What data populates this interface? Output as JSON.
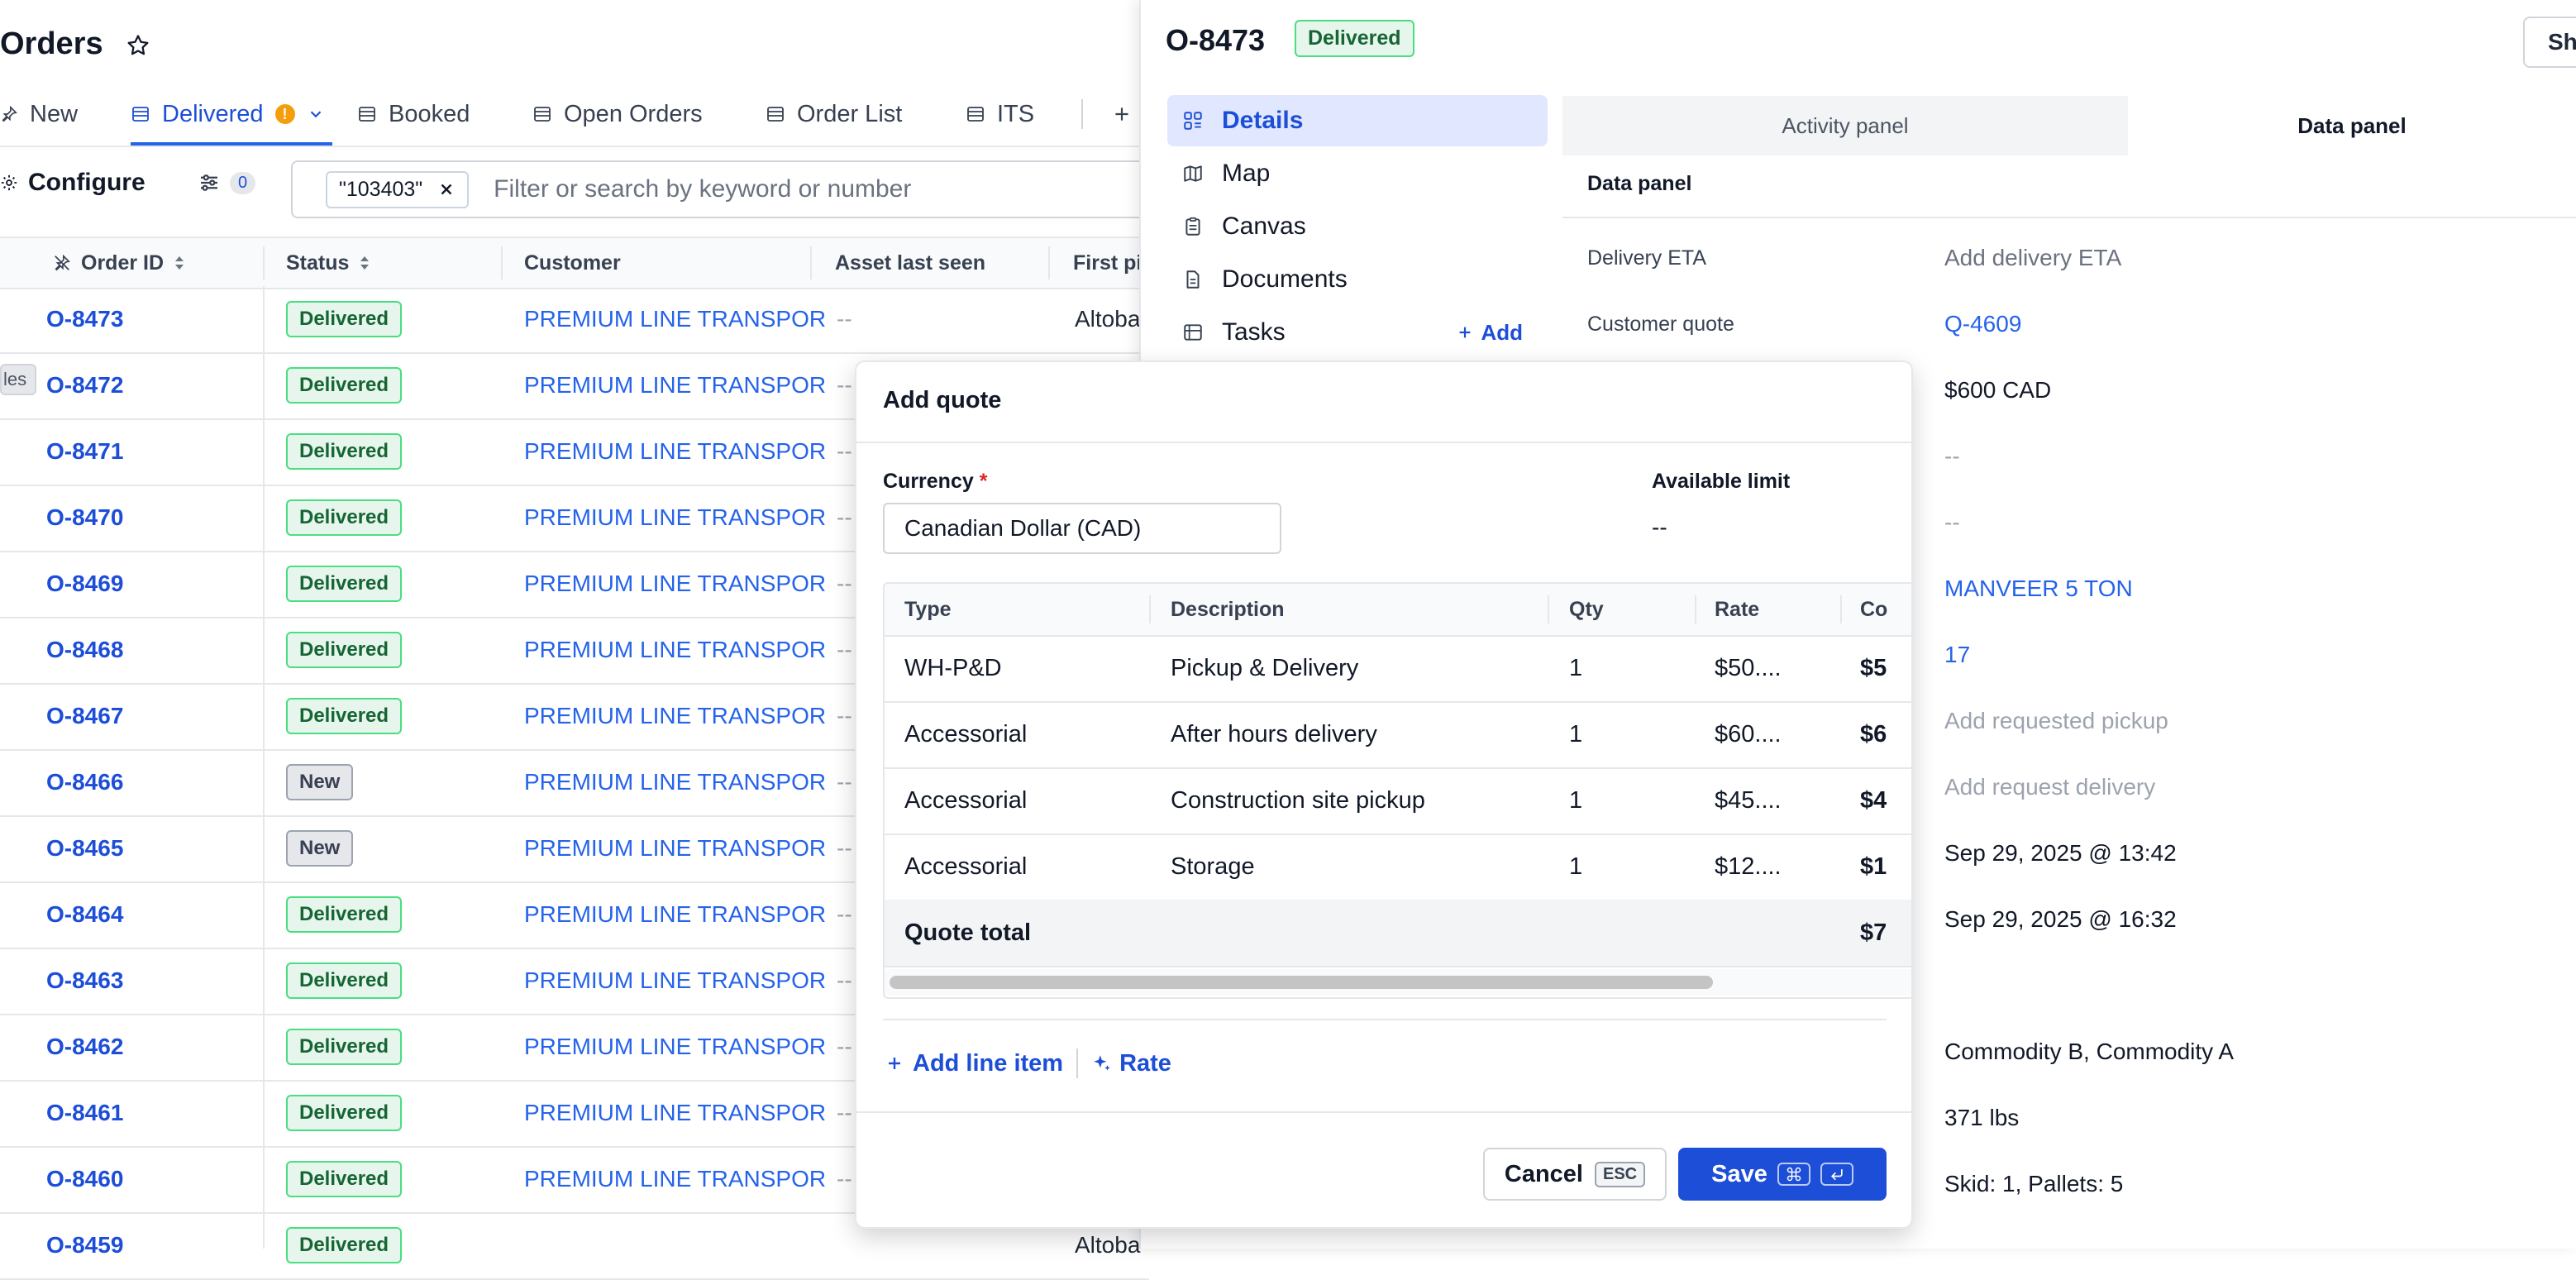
{
  "header": {
    "title": "Orders"
  },
  "tabs": [
    {
      "label": "New"
    },
    {
      "label": "Delivered"
    },
    {
      "label": "Booked"
    },
    {
      "label": "Open Orders"
    },
    {
      "label": "Order List"
    },
    {
      "label": "ITS"
    }
  ],
  "toolbar": {
    "configure_label": "Configure",
    "filter_count": "0"
  },
  "search": {
    "chip": "\"103403\"",
    "placeholder": "Filter or search by keyword or number"
  },
  "table": {
    "headers": [
      "Order ID",
      "Status",
      "Customer",
      "Asset last seen",
      "First pi"
    ],
    "rows": [
      {
        "id": "O-8473",
        "status": "Delivered",
        "customer": "PREMIUM LINE TRANSPOR",
        "asset": "--",
        "first": "Altoba"
      },
      {
        "id": "O-8472",
        "status": "Delivered",
        "customer": "PREMIUM LINE TRANSPOR",
        "asset": "--",
        "first": ""
      },
      {
        "id": "O-8471",
        "status": "Delivered",
        "customer": "PREMIUM LINE TRANSPOR",
        "asset": "--",
        "first": ""
      },
      {
        "id": "O-8470",
        "status": "Delivered",
        "customer": "PREMIUM LINE TRANSPOR",
        "asset": "--",
        "first": ""
      },
      {
        "id": "O-8469",
        "status": "Delivered",
        "customer": "PREMIUM LINE TRANSPOR",
        "asset": "--",
        "first": ""
      },
      {
        "id": "O-8468",
        "status": "Delivered",
        "customer": "PREMIUM LINE TRANSPOR",
        "asset": "--",
        "first": ""
      },
      {
        "id": "O-8467",
        "status": "Delivered",
        "customer": "PREMIUM LINE TRANSPOR",
        "asset": "--",
        "first": ""
      },
      {
        "id": "O-8466",
        "status": "New",
        "customer": "PREMIUM LINE TRANSPOR",
        "asset": "--",
        "first": ""
      },
      {
        "id": "O-8465",
        "status": "New",
        "customer": "PREMIUM LINE TRANSPOR",
        "asset": "--",
        "first": ""
      },
      {
        "id": "O-8464",
        "status": "Delivered",
        "customer": "PREMIUM LINE TRANSPOR",
        "asset": "--",
        "first": ""
      },
      {
        "id": "O-8463",
        "status": "Delivered",
        "customer": "PREMIUM LINE TRANSPOR",
        "asset": "--",
        "first": ""
      },
      {
        "id": "O-8462",
        "status": "Delivered",
        "customer": "PREMIUM LINE TRANSPOR",
        "asset": "--",
        "first": ""
      },
      {
        "id": "O-8461",
        "status": "Delivered",
        "customer": "PREMIUM LINE TRANSPOR",
        "asset": "--",
        "first": ""
      },
      {
        "id": "O-8460",
        "status": "Delivered",
        "customer": "PREMIUM LINE TRANSPOR",
        "asset": "--",
        "first": ""
      },
      {
        "id": "O-8459",
        "status": "Delivered",
        "customer": "",
        "asset": "",
        "first": "Altoba"
      }
    ]
  },
  "tooltip": {
    "text": "les"
  },
  "panel": {
    "order_id": "O-8473",
    "status": "Delivered",
    "share_label": "Sha",
    "nav": [
      {
        "label": "Details"
      },
      {
        "label": "Map"
      },
      {
        "label": "Canvas"
      },
      {
        "label": "Documents"
      },
      {
        "label": "Tasks"
      }
    ],
    "nav_add_label": "Add",
    "tab_activity": "Activity panel",
    "tab_data": "Data panel",
    "data_panel_title": "Data panel",
    "fields": [
      {
        "label": "Delivery ETA",
        "value": "Add delivery ETA"
      },
      {
        "label": "Customer quote",
        "value": "Q-4609"
      }
    ],
    "values": [
      "$600 CAD",
      "--",
      "--",
      "MANVEER 5 TON",
      "17",
      "Add requested pickup",
      "Add request delivery",
      "Sep 29, 2025 @ 13:42",
      "Sep 29, 2025 @ 16:32",
      "Commodity B, Commodity A",
      "371 lbs",
      "Skid: 1, Pallets: 5"
    ]
  },
  "modal": {
    "title": "Add quote",
    "currency_label": "Currency",
    "required_mark": "*",
    "currency_value": "Canadian Dollar (CAD)",
    "limit_label": "Available limit",
    "limit_value": "--",
    "headers": [
      "Type",
      "Description",
      "Qty",
      "Rate",
      "Co"
    ],
    "lines": [
      {
        "type": "WH-P&D",
        "description": "Pickup & Delivery",
        "qty": "1",
        "rate": "$50....",
        "cost": "$5"
      },
      {
        "type": "Accessorial",
        "description": "After hours delivery",
        "qty": "1",
        "rate": "$60....",
        "cost": "$6"
      },
      {
        "type": "Accessorial",
        "description": "Construction site pickup",
        "qty": "1",
        "rate": "$45....",
        "cost": "$4"
      },
      {
        "type": "Accessorial",
        "description": "Storage",
        "qty": "1",
        "rate": "$12....",
        "cost": "$1"
      }
    ],
    "total_label": "Quote total",
    "total_value": "$7",
    "add_line_label": "Add line item",
    "rate_label": "Rate",
    "cancel_label": "Cancel",
    "cancel_kbd": "ESC",
    "save_label": "Save"
  }
}
